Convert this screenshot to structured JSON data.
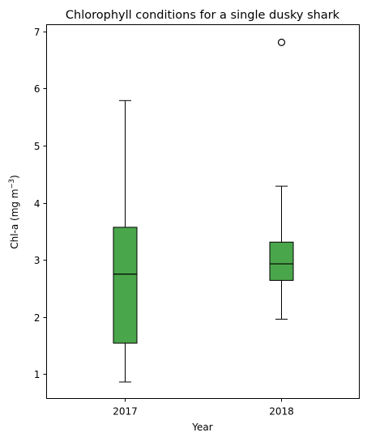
{
  "chart_data": {
    "type": "box",
    "title": "Chlorophyll conditions for a single dusky shark",
    "xlabel": "Year",
    "ylabel": "Chl-a (mg m",
    "ylabel_unit_sup": "−3",
    "ylabel_close": ")",
    "ylim": [
      0.57,
      7.12
    ],
    "yticks": [
      "1",
      "2",
      "3",
      "4",
      "5",
      "6",
      "7"
    ],
    "categories": [
      "2017",
      "2018"
    ],
    "box_color": "#4aa64a",
    "boxes": [
      {
        "category": "2017",
        "whisker_low": 0.86,
        "q1": 1.54,
        "median": 2.75,
        "q3": 3.57,
        "whisker_high": 5.79,
        "outliers": []
      },
      {
        "category": "2018",
        "whisker_low": 1.96,
        "q1": 2.64,
        "median": 2.93,
        "q3": 3.31,
        "whisker_high": 4.29,
        "outliers": [
          6.81
        ]
      }
    ],
    "grid": false,
    "legend": "none"
  }
}
